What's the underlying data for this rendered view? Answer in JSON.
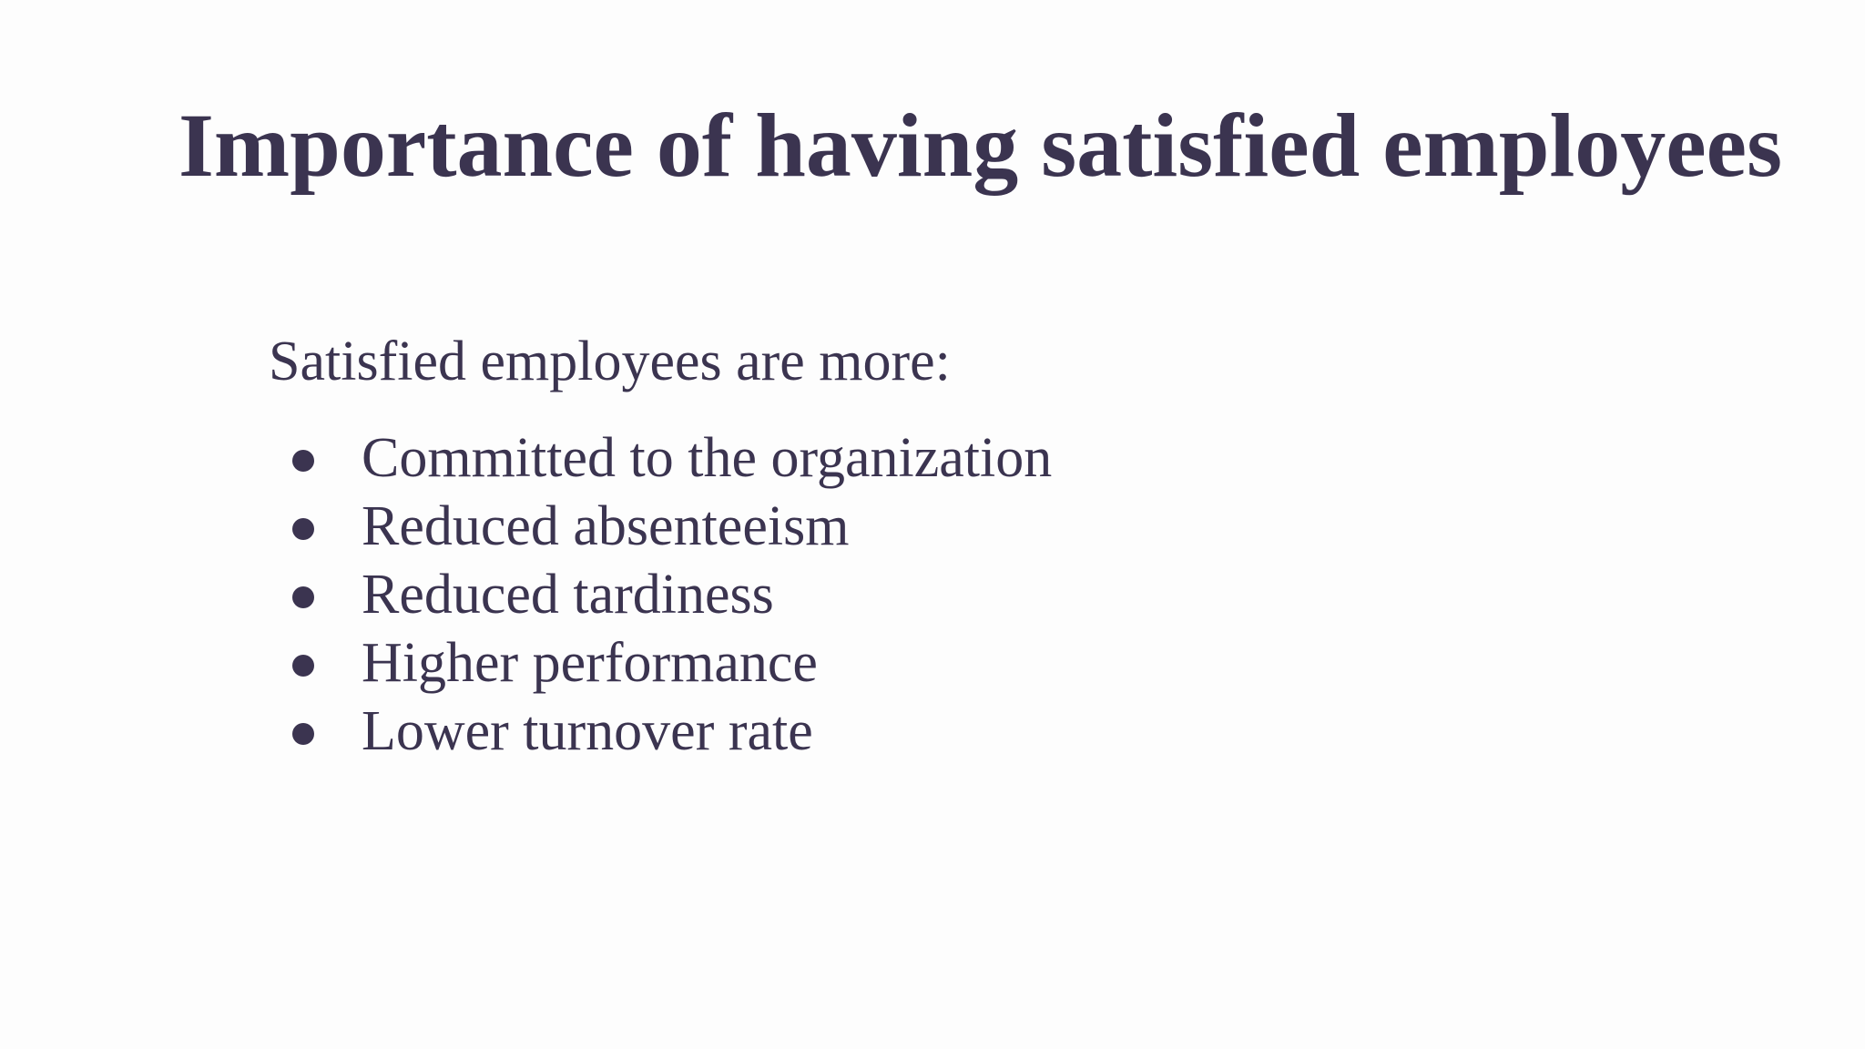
{
  "header": {
    "title": "Importance of having satisfied employees"
  },
  "body": {
    "intro": "Satisfied employees are more:",
    "items": [
      "Committed to the organization",
      "Reduced absenteeism",
      "Reduced tardiness",
      "Higher performance",
      "Lower turnover rate"
    ]
  }
}
